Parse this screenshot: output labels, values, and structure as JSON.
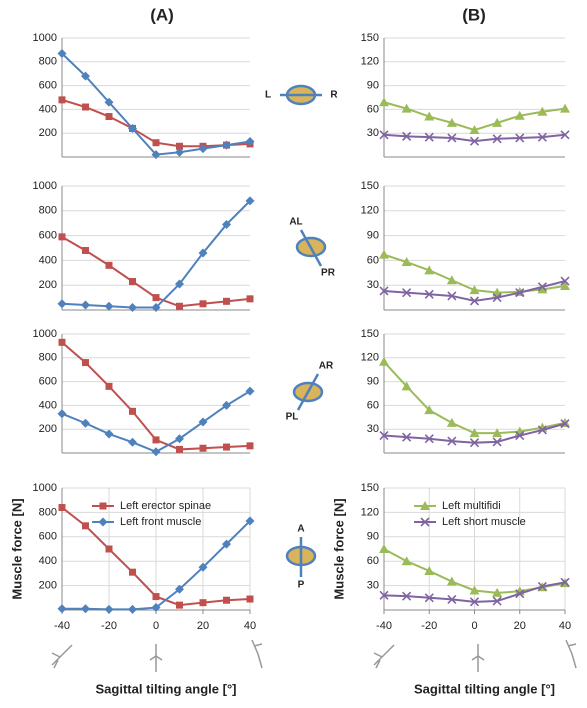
{
  "panel_a": "(A)",
  "panel_b": "(B)",
  "annotations": [
    "L",
    "R",
    "AL",
    "PR",
    "AR",
    "PL",
    "A",
    "P"
  ],
  "chart_data": [
    {
      "type": "line",
      "x": [
        -40,
        -30,
        -20,
        -10,
        0,
        10,
        20,
        30,
        40
      ],
      "xlim": [
        -40,
        40
      ],
      "ylim": [
        0,
        1000
      ],
      "yticks": [
        200,
        400,
        600,
        800,
        1000
      ],
      "grid": true,
      "series": [
        {
          "color": "#c0504d",
          "marker": "square",
          "values": [
            480,
            420,
            340,
            240,
            120,
            90,
            90,
            100,
            110
          ]
        },
        {
          "color": "#4f81bd",
          "marker": "diamond",
          "values": [
            870,
            680,
            460,
            240,
            20,
            40,
            70,
            100,
            130
          ]
        }
      ]
    },
    {
      "type": "line",
      "x": [
        -40,
        -30,
        -20,
        -10,
        0,
        10,
        20,
        30,
        40
      ],
      "xlim": [
        -40,
        40
      ],
      "ylim": [
        0,
        150
      ],
      "yticks": [
        30,
        60,
        90,
        120,
        150
      ],
      "grid": true,
      "series": [
        {
          "color": "#9bbb59",
          "marker": "triangle",
          "values": [
            69,
            61,
            51,
            43,
            34,
            43,
            52,
            57,
            61
          ]
        },
        {
          "color": "#8064a2",
          "marker": "x",
          "values": [
            28,
            26,
            25,
            24,
            20,
            23,
            24,
            25,
            28
          ]
        }
      ]
    },
    {
      "type": "line",
      "x": [
        -40,
        -30,
        -20,
        -10,
        0,
        10,
        20,
        30,
        40
      ],
      "xlim": [
        -40,
        40
      ],
      "ylim": [
        0,
        1000
      ],
      "yticks": [
        200,
        400,
        600,
        800,
        1000
      ],
      "grid": true,
      "series": [
        {
          "color": "#c0504d",
          "marker": "square",
          "values": [
            590,
            480,
            360,
            230,
            100,
            30,
            50,
            70,
            90
          ]
        },
        {
          "color": "#4f81bd",
          "marker": "diamond",
          "values": [
            50,
            40,
            30,
            20,
            20,
            210,
            460,
            690,
            880
          ]
        }
      ]
    },
    {
      "type": "line",
      "x": [
        -40,
        -30,
        -20,
        -10,
        0,
        10,
        20,
        30,
        40
      ],
      "xlim": [
        -40,
        40
      ],
      "ylim": [
        0,
        150
      ],
      "yticks": [
        30,
        60,
        90,
        120,
        150
      ],
      "grid": true,
      "series": [
        {
          "color": "#9bbb59",
          "marker": "triangle",
          "values": [
            67,
            58,
            48,
            36,
            24,
            21,
            22,
            25,
            29
          ]
        },
        {
          "color": "#8064a2",
          "marker": "x",
          "values": [
            23,
            21,
            19,
            17,
            11,
            15,
            21,
            28,
            35
          ]
        }
      ]
    },
    {
      "type": "line",
      "x": [
        -40,
        -30,
        -20,
        -10,
        0,
        10,
        20,
        30,
        40
      ],
      "xlim": [
        -40,
        40
      ],
      "ylim": [
        0,
        1000
      ],
      "yticks": [
        200,
        400,
        600,
        800,
        1000
      ],
      "grid": true,
      "series": [
        {
          "color": "#c0504d",
          "marker": "square",
          "values": [
            930,
            760,
            560,
            350,
            110,
            30,
            40,
            50,
            60
          ]
        },
        {
          "color": "#4f81bd",
          "marker": "diamond",
          "values": [
            330,
            250,
            160,
            90,
            10,
            120,
            260,
            400,
            520
          ]
        }
      ]
    },
    {
      "type": "line",
      "x": [
        -40,
        -30,
        -20,
        -10,
        0,
        10,
        20,
        30,
        40
      ],
      "xlim": [
        -40,
        40
      ],
      "ylim": [
        0,
        150
      ],
      "yticks": [
        30,
        60,
        90,
        120,
        150
      ],
      "grid": true,
      "series": [
        {
          "color": "#9bbb59",
          "marker": "triangle",
          "values": [
            115,
            84,
            54,
            38,
            25,
            25,
            27,
            32,
            38
          ]
        },
        {
          "color": "#8064a2",
          "marker": "x",
          "values": [
            22,
            20,
            18,
            15,
            13,
            14,
            22,
            29,
            37
          ]
        }
      ]
    },
    {
      "type": "line",
      "x": [
        -40,
        -30,
        -20,
        -10,
        0,
        10,
        20,
        30,
        40
      ],
      "xlim": [
        -40,
        40
      ],
      "ylim": [
        0,
        1000
      ],
      "yticks": [
        200,
        400,
        600,
        800,
        1000
      ],
      "xticks": [
        -40,
        -20,
        0,
        20,
        40
      ],
      "grid": true,
      "ylabel": "Muscle force [N]",
      "xlabel": "Sagittal tilting angle [°]",
      "legend": "upper left",
      "series": [
        {
          "name": "Left erector spinae",
          "color": "#c0504d",
          "marker": "square",
          "values": [
            840,
            690,
            500,
            310,
            110,
            40,
            60,
            80,
            90
          ]
        },
        {
          "name": "Left front muscle",
          "color": "#4f81bd",
          "marker": "diamond",
          "values": [
            10,
            10,
            5,
            5,
            20,
            170,
            350,
            540,
            730
          ]
        }
      ]
    },
    {
      "type": "line",
      "x": [
        -40,
        -30,
        -20,
        -10,
        0,
        10,
        20,
        30,
        40
      ],
      "xlim": [
        -40,
        40
      ],
      "ylim": [
        0,
        150
      ],
      "yticks": [
        30,
        60,
        90,
        120,
        150
      ],
      "xticks": [
        -40,
        -20,
        0,
        20,
        40
      ],
      "grid": true,
      "ylabel": "Muscle force [N]",
      "xlabel": "Sagittal tilting angle [°]",
      "legend": "upper left",
      "series": [
        {
          "name": "Left multifidi",
          "color": "#9bbb59",
          "marker": "triangle",
          "values": [
            75,
            60,
            48,
            35,
            24,
            21,
            23,
            28,
            33
          ]
        },
        {
          "name": "Left short muscle",
          "color": "#8064a2",
          "marker": "x",
          "values": [
            18,
            17,
            15,
            13,
            10,
            11,
            20,
            29,
            34
          ]
        }
      ]
    }
  ]
}
